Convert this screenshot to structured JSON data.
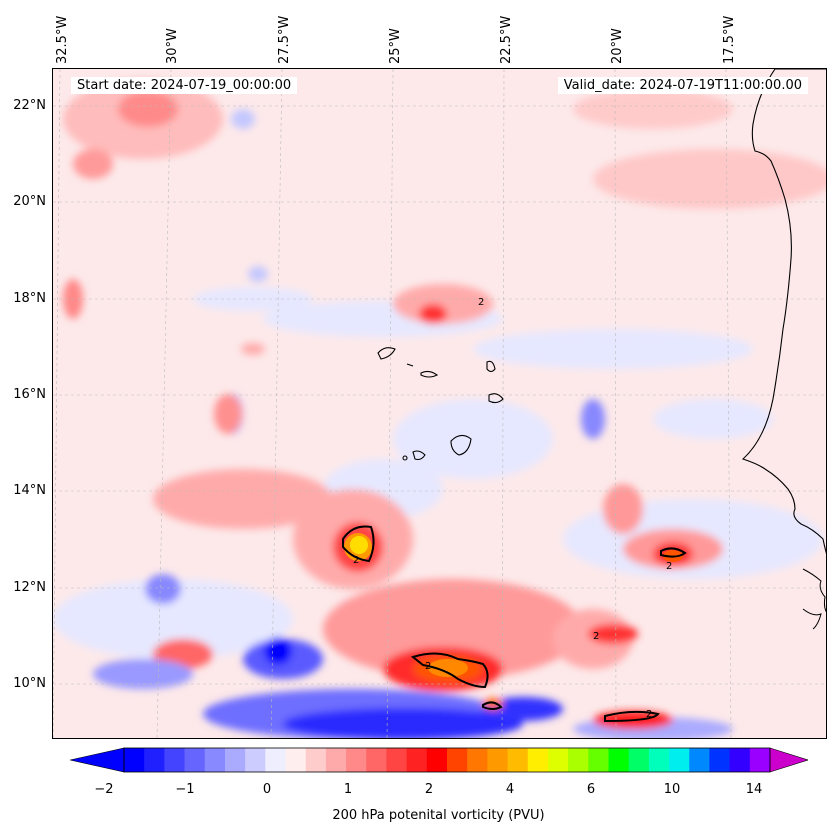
{
  "header": {
    "start_date": "Start date: 2024-07-19_00:00:00",
    "valid_date": "Valid_date: 2024-07-19T11:00:00.00"
  },
  "map": {
    "lon_labels": [
      "32.5°W",
      "30°W",
      "27.5°W",
      "25°W",
      "22.5°W",
      "20°W",
      "17.5°W"
    ],
    "lat_labels": [
      "22°N",
      "20°N",
      "18°N",
      "16°N",
      "14°N",
      "12°N",
      "10°N"
    ],
    "contour_label": "2",
    "gridlines": "dashed"
  },
  "colorbar": {
    "label": "200 hPa potenital vorticity (PVU)",
    "ticks": [
      "−2",
      "−1",
      "0",
      "1",
      "2",
      "4",
      "6",
      "10",
      "14"
    ],
    "colors": [
      "#0000ff",
      "#2020ff",
      "#4444ff",
      "#6666ff",
      "#8888ff",
      "#aaaaff",
      "#ccccff",
      "#eeeeff",
      "#ffeeee",
      "#ffcccc",
      "#ffaaaa",
      "#ff8888",
      "#ff6666",
      "#ff4444",
      "#ff2222",
      "#ff0000",
      "#ff4400",
      "#ff7700",
      "#ff9900",
      "#ffbb00",
      "#ffee00",
      "#ddff00",
      "#aaff00",
      "#66ff00",
      "#00ff00",
      "#00ff66",
      "#00ffbb",
      "#00eeee",
      "#0088ff",
      "#0033ff",
      "#3300ff",
      "#9900ff"
    ],
    "extend": "both"
  }
}
